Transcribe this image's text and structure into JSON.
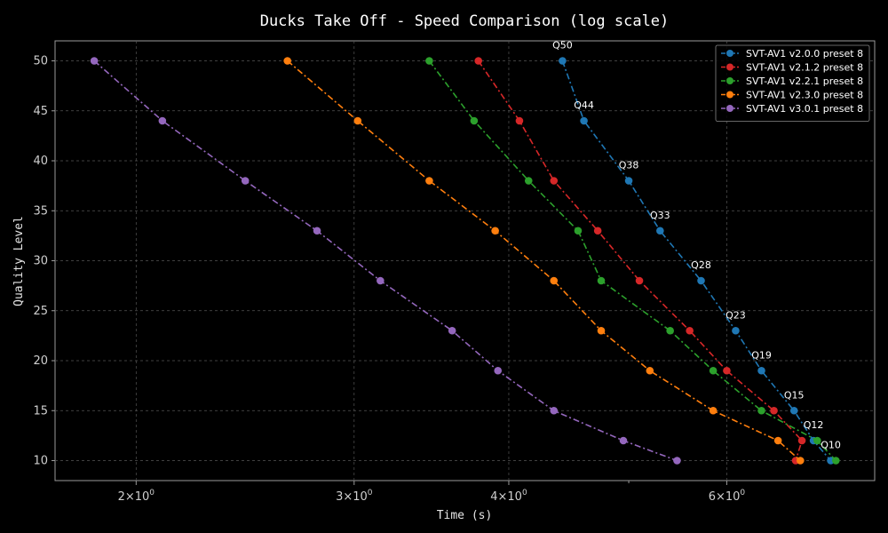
{
  "chart_data": {
    "type": "line",
    "title": "Ducks Take Off - Speed Comparison (log scale)",
    "xlabel": "Time (s)",
    "ylabel": "Quality Level",
    "x_scale": "log",
    "xlim": [
      1.72,
      7.9
    ],
    "ylim": [
      8,
      52
    ],
    "x_ticks": [
      {
        "value": 2,
        "base": "2",
        "exp": "0"
      },
      {
        "value": 3,
        "base": "3",
        "exp": "0"
      },
      {
        "value": 4,
        "base": "4",
        "exp": "0"
      },
      {
        "value": 6,
        "base": "6",
        "exp": "0"
      }
    ],
    "x_minor_ticks": [
      5
    ],
    "y_ticks": [
      10,
      15,
      20,
      25,
      30,
      35,
      40,
      45,
      50
    ],
    "grid": true,
    "legend_position": "top-right",
    "series": [
      {
        "name": "SVT-AV1 v2.0.0 preset 8",
        "color": "#1f77b4",
        "x": [
          4.42,
          4.6,
          5.0,
          5.3,
          5.72,
          6.1,
          6.4,
          6.8,
          7.05,
          7.28
        ],
        "y": [
          50,
          44,
          38,
          33,
          28,
          23,
          19,
          15,
          12,
          10
        ]
      },
      {
        "name": "SVT-AV1 v2.1.2 preset 8",
        "color": "#d62728",
        "x": [
          3.78,
          4.08,
          4.35,
          4.72,
          5.1,
          5.6,
          6.0,
          6.55,
          6.9,
          6.82
        ],
        "y": [
          50,
          44,
          38,
          33,
          28,
          23,
          19,
          15,
          12,
          10
        ]
      },
      {
        "name": "SVT-AV1 v2.2.1 preset 8",
        "color": "#2ca02c",
        "x": [
          3.45,
          3.75,
          4.15,
          4.55,
          4.75,
          5.4,
          5.85,
          6.4,
          7.1,
          7.35
        ],
        "y": [
          50,
          44,
          38,
          33,
          28,
          23,
          19,
          15,
          12,
          10
        ]
      },
      {
        "name": "SVT-AV1 v2.3.0 preset 8",
        "color": "#ff7f0e",
        "x": [
          2.65,
          3.02,
          3.45,
          3.9,
          4.35,
          4.75,
          5.2,
          5.85,
          6.6,
          6.88
        ],
        "y": [
          50,
          44,
          38,
          33,
          28,
          23,
          19,
          15,
          12,
          10
        ]
      },
      {
        "name": "SVT-AV1 v3.0.1 preset 8",
        "color": "#9467bd",
        "x": [
          1.85,
          2.1,
          2.45,
          2.8,
          3.15,
          3.6,
          3.92,
          4.35,
          4.95,
          5.47
        ],
        "y": [
          50,
          44,
          38,
          33,
          28,
          23,
          19,
          15,
          12,
          10
        ]
      }
    ],
    "annotations": [
      {
        "text": "Q50",
        "series": 0,
        "point": 0
      },
      {
        "text": "Q44",
        "series": 0,
        "point": 1
      },
      {
        "text": "Q38",
        "series": 0,
        "point": 2
      },
      {
        "text": "Q33",
        "series": 0,
        "point": 3
      },
      {
        "text": "Q28",
        "series": 0,
        "point": 4
      },
      {
        "text": "Q23",
        "series": 0,
        "point": 5
      },
      {
        "text": "Q19",
        "series": 0,
        "point": 6
      },
      {
        "text": "Q15",
        "series": 0,
        "point": 7
      },
      {
        "text": "Q12",
        "series": 0,
        "point": 8
      },
      {
        "text": "Q10",
        "series": 0,
        "point": 9
      }
    ]
  }
}
